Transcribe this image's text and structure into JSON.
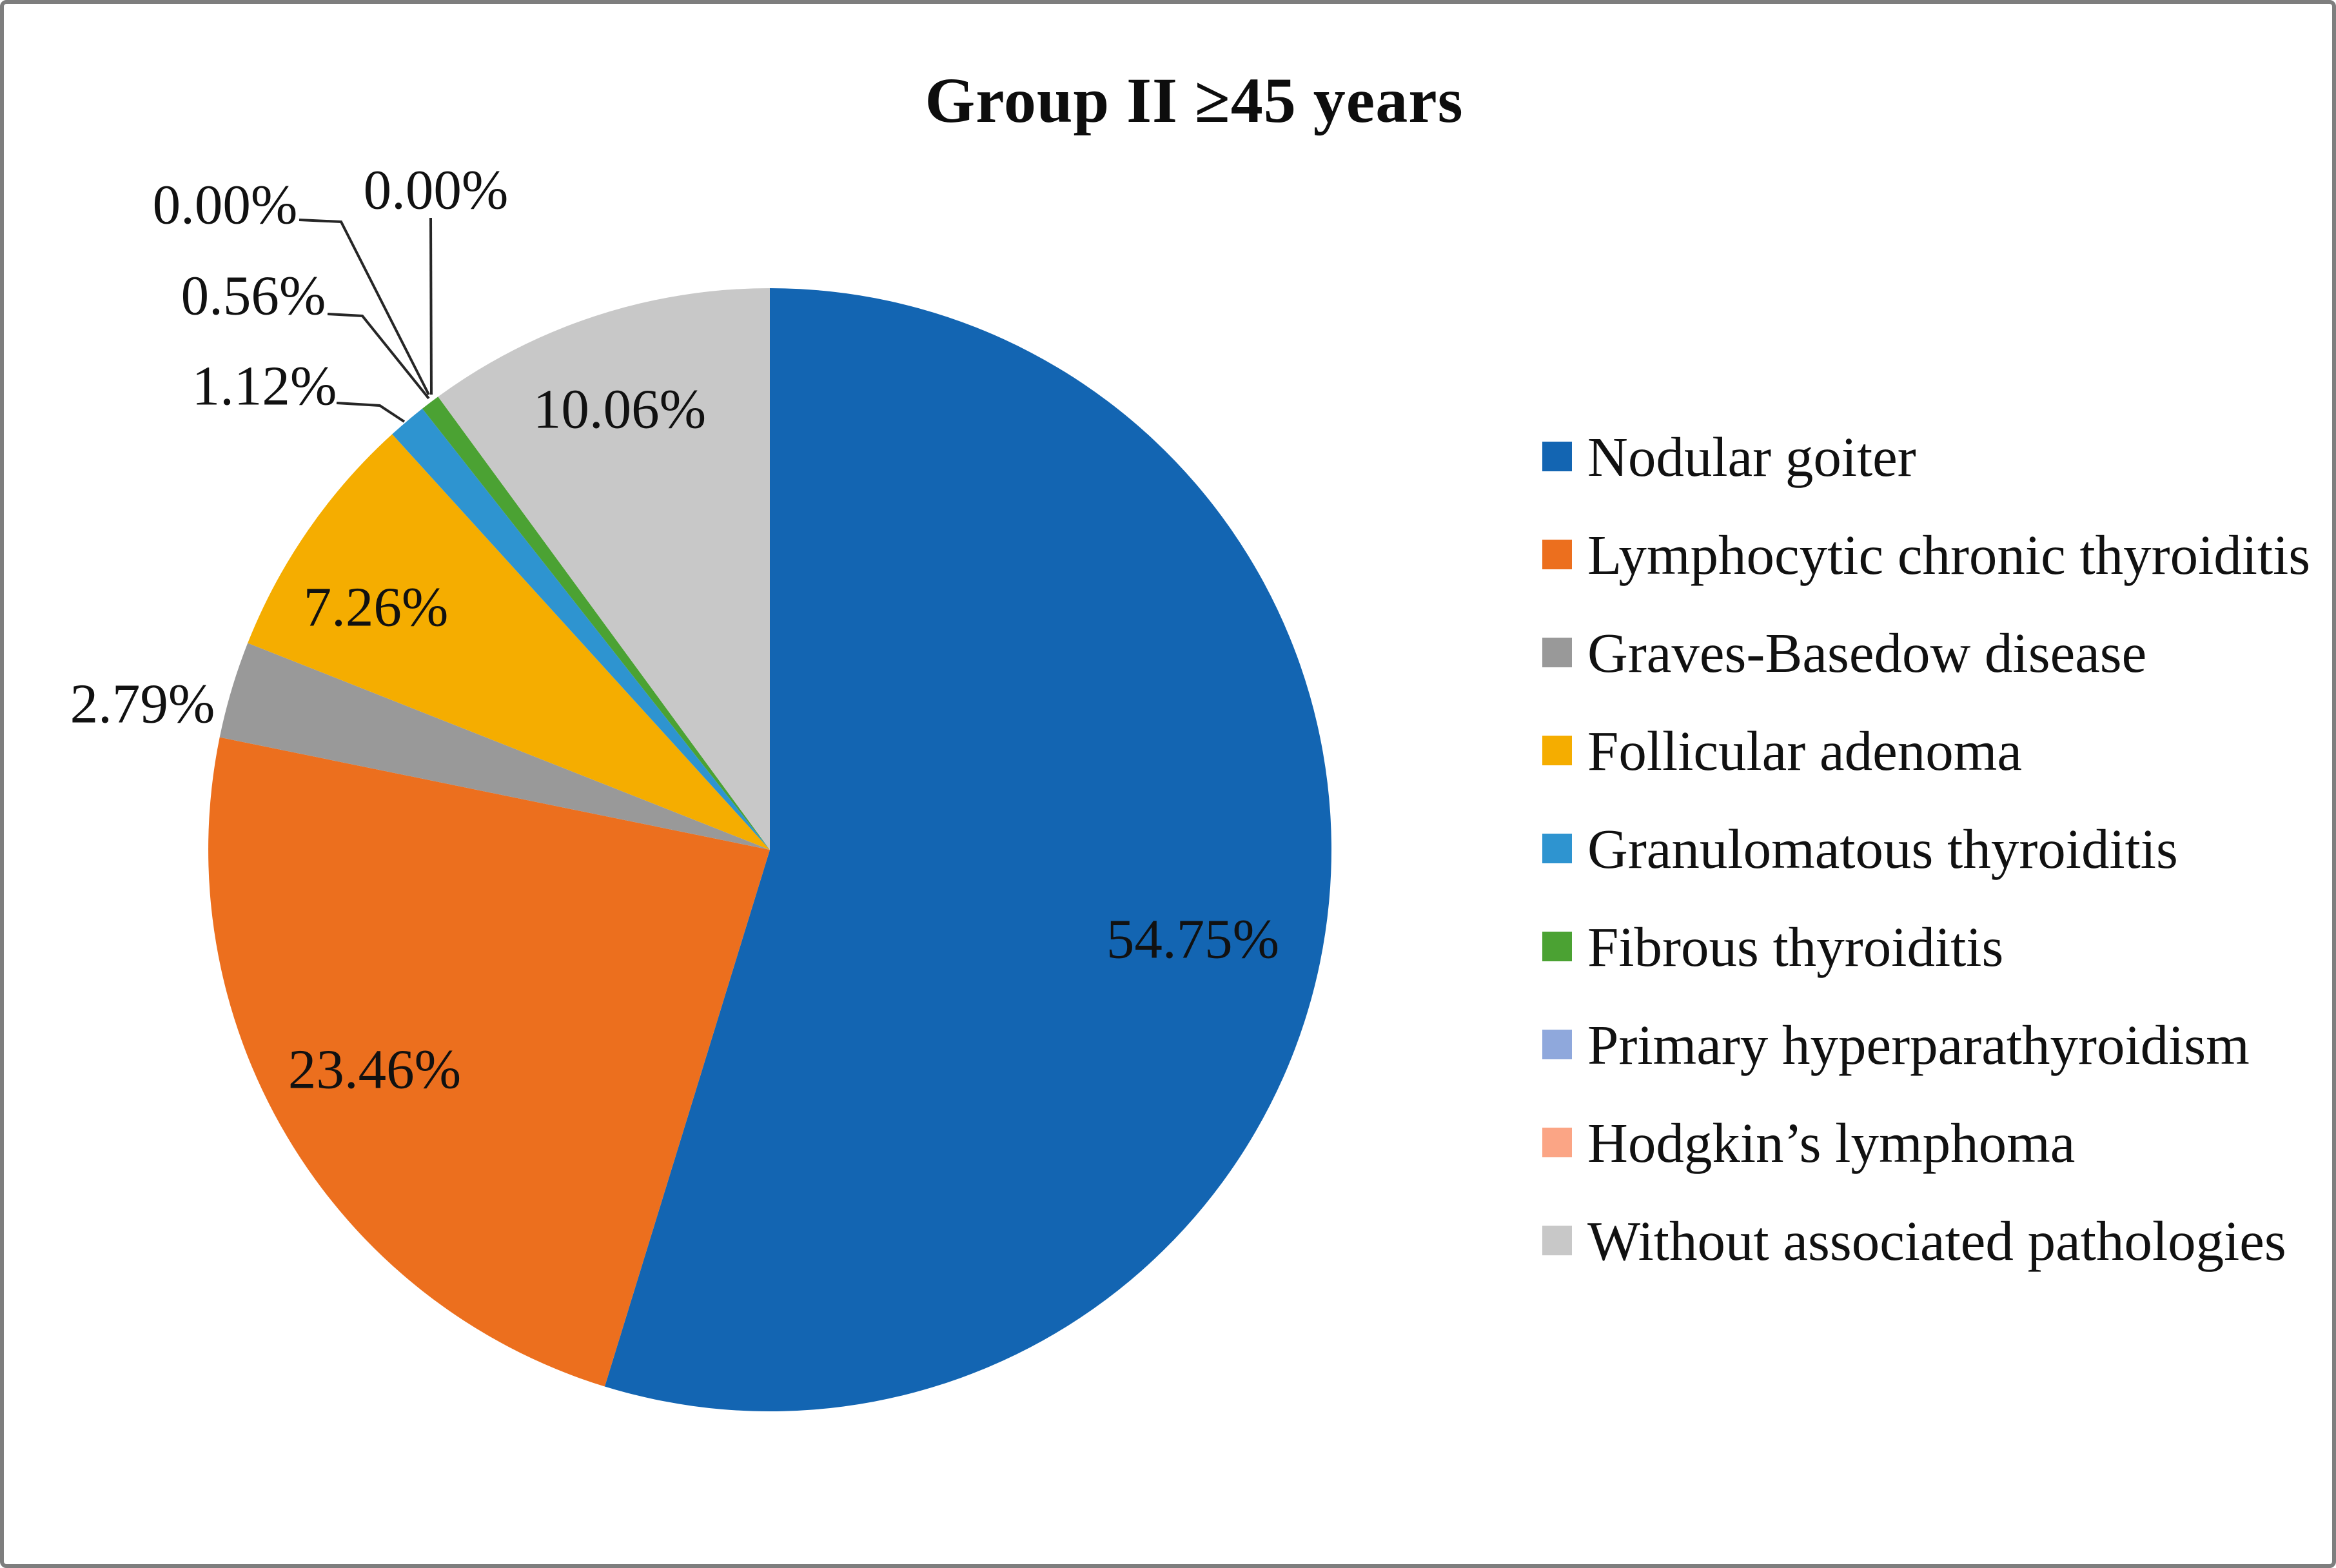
{
  "title": "Group II ≥45 years",
  "chart_data": {
    "type": "pie",
    "title": "Group II ≥45 years",
    "unit": "%",
    "start_angle_deg": 0,
    "direction": "clockwise",
    "legend_position": "right",
    "total": 100.0,
    "slices": [
      {
        "label": "Nodular goiter",
        "value": 54.75,
        "display": "54.75%",
        "color": "#1365b2",
        "label_placement": "inside"
      },
      {
        "label": "Lymphocytic chronic thyroiditis",
        "value": 23.46,
        "display": "23.46%",
        "color": "#ec6f1e",
        "label_placement": "inside"
      },
      {
        "label": "Graves-Basedow disease",
        "value": 2.79,
        "display": "2.79%",
        "color": "#999999",
        "label_placement": "outside"
      },
      {
        "label": "Follicular adenoma",
        "value": 7.26,
        "display": "7.26%",
        "color": "#f5ad00",
        "label_placement": "inside"
      },
      {
        "label": "Granulomatous thyroiditis",
        "value": 1.12,
        "display": "1.12%",
        "color": "#2e94d0",
        "label_placement": "callout"
      },
      {
        "label": "Fibrous thyroiditis",
        "value": 0.56,
        "display": "0.56%",
        "color": "#4ba233",
        "label_placement": "callout"
      },
      {
        "label": "Primary hyperparathyroidism",
        "value": 0.0,
        "display": "0.00%",
        "color": "#8fa8dc",
        "label_placement": "callout"
      },
      {
        "label": "Hodgkin’s lymphoma",
        "value": 0.0,
        "display": "0.00%",
        "color": "#fba585",
        "label_placement": "callout"
      },
      {
        "label": "Without associated pathologies",
        "value": 10.06,
        "display": "10.06%",
        "color": "#c8c8c8",
        "label_placement": "inside"
      }
    ]
  },
  "colors": {
    "background": "#ffffff",
    "frame_border": "#7e7e7e",
    "leader_line": "#262626",
    "text": "#111111"
  }
}
